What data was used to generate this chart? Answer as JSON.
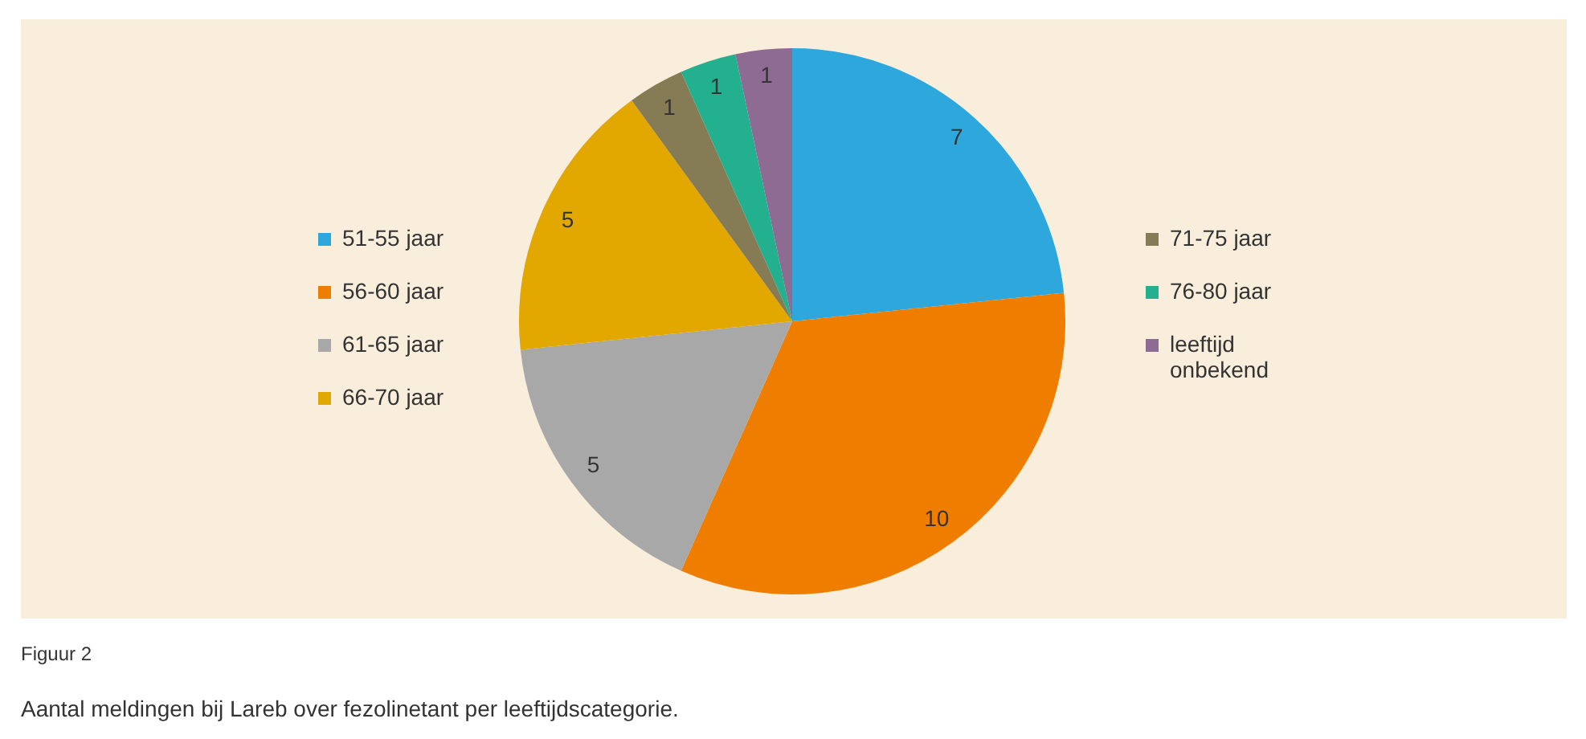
{
  "chart_data": {
    "type": "pie",
    "categories": [
      "51-55 jaar",
      "56-60 jaar",
      "61-65 jaar",
      "66-70 jaar",
      "71-75 jaar",
      "76-80 jaar",
      "leeftijd onbekend"
    ],
    "values": [
      7,
      10,
      5,
      5,
      1,
      1,
      1
    ],
    "colors": [
      "#2ea8dc",
      "#ef7d00",
      "#a8a8a8",
      "#e2a800",
      "#857b55",
      "#23b08f",
      "#8e6b93"
    ],
    "data_labels": true,
    "legend": "left",
    "annotations": [
      "Figuur 2",
      "Aantal meldingen bij Lareb over fezolinetant per leeftijdscategorie."
    ]
  }
}
